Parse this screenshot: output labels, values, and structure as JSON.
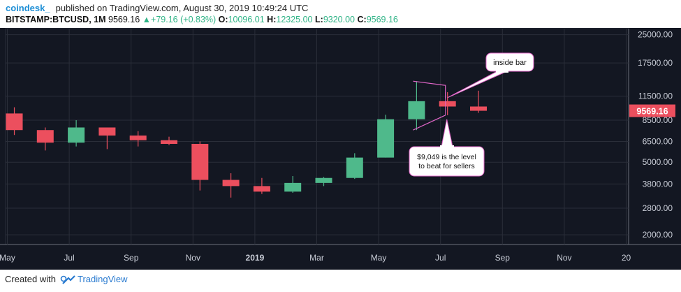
{
  "header": {
    "brand": "coindesk_",
    "published": "published on TradingView.com, August 30, 2019 10:49:24 UTC",
    "symbol": "BITSTAMP:BTCUSD, 1M",
    "last": "9569.16",
    "change": "+79.16 (+0.83%)",
    "o_label": "O:",
    "o_value": "10096.01",
    "h_label": "H:",
    "h_value": "12325.00",
    "l_label": "L:",
    "l_value": "9320.00",
    "c_label": "C:",
    "c_value": "9569.16"
  },
  "footer": {
    "created_with": "Created with",
    "logo_text": "TradingView"
  },
  "colors": {
    "bg": "#131722",
    "up": "#4fb98b",
    "down": "#ec4f5e",
    "annotation": "#e066c8",
    "price_tag": "#ec4f5e"
  },
  "chart_data": {
    "type": "candlestick",
    "scale": "log",
    "ylim": [
      1650,
      26500
    ],
    "y_ticks": [
      25000,
      17500,
      11500,
      8500,
      6500,
      5000,
      3800,
      2800,
      2000
    ],
    "y_tick_labels": [
      "25000.00",
      "17500.00",
      "11500.00",
      "8500.00",
      "6500.00",
      "5000.00",
      "3800.00",
      "2800.00",
      "2000.00"
    ],
    "x_tick_labels": [
      {
        "label": "May",
        "index": 0
      },
      {
        "label": "Jul",
        "index": 2
      },
      {
        "label": "Sep",
        "index": 4
      },
      {
        "label": "Nov",
        "index": 6
      },
      {
        "label": "2019",
        "index": 8,
        "bold": true
      },
      {
        "label": "Mar",
        "index": 10
      },
      {
        "label": "May",
        "index": 12
      },
      {
        "label": "Jul",
        "index": 14
      },
      {
        "label": "Sep",
        "index": 16
      },
      {
        "label": "Nov",
        "index": 18
      },
      {
        "label": "20",
        "index": 20
      }
    ],
    "candles": [
      {
        "date": "2018-05",
        "open": 9250,
        "high": 10000,
        "low": 7050,
        "close": 7500
      },
      {
        "date": "2018-06",
        "open": 7500,
        "high": 7750,
        "low": 5800,
        "close": 6400
      },
      {
        "date": "2018-07",
        "open": 6400,
        "high": 8500,
        "low": 6100,
        "close": 7750
      },
      {
        "date": "2018-08",
        "open": 7750,
        "high": 7750,
        "low": 5900,
        "close": 7000
      },
      {
        "date": "2018-09",
        "open": 7000,
        "high": 7400,
        "low": 6100,
        "close": 6600
      },
      {
        "date": "2018-10",
        "open": 6600,
        "high": 6900,
        "low": 6200,
        "close": 6300
      },
      {
        "date": "2018-11",
        "open": 6300,
        "high": 6500,
        "low": 3500,
        "close": 4000
      },
      {
        "date": "2018-12",
        "open": 4000,
        "high": 4350,
        "low": 3200,
        "close": 3700
      },
      {
        "date": "2019-01",
        "open": 3700,
        "high": 4100,
        "low": 3350,
        "close": 3450
      },
      {
        "date": "2019-02",
        "open": 3450,
        "high": 4200,
        "low": 3400,
        "close": 3850
      },
      {
        "date": "2019-03",
        "open": 3850,
        "high": 4150,
        "low": 3700,
        "close": 4100
      },
      {
        "date": "2019-04",
        "open": 4100,
        "high": 5600,
        "low": 4050,
        "close": 5300
      },
      {
        "date": "2019-05",
        "open": 5300,
        "high": 9100,
        "low": 5300,
        "close": 8600
      },
      {
        "date": "2019-06",
        "open": 8600,
        "high": 13900,
        "low": 7500,
        "close": 10800
      },
      {
        "date": "2019-07",
        "open": 10800,
        "high": 12100,
        "low": 9049,
        "close": 10096
      },
      {
        "date": "2019-08",
        "open": 10096.01,
        "high": 12325,
        "low": 9320,
        "close": 9569.16
      }
    ],
    "last_price_label": "9569.16",
    "annotations": [
      {
        "text": "inside bar"
      },
      {
        "text": "$9,049 is the level to beat for sellers",
        "lines": [
          "$9,049 is the level",
          "to beat for sellers"
        ]
      }
    ]
  }
}
